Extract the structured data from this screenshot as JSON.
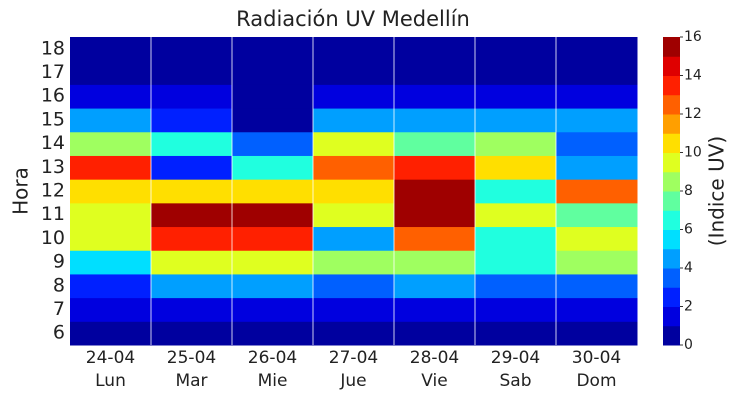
{
  "chart_data": {
    "type": "heatmap",
    "title": "Radiación UV Medellín",
    "x_categories": [
      "24-04",
      "25-04",
      "26-04",
      "27-04",
      "28-04",
      "29-04",
      "30-04"
    ],
    "x_sublabels": [
      "Lun",
      "Mar",
      "Mie",
      "Jue",
      "Vie",
      "Sab",
      "Dom"
    ],
    "y_categories": [
      "6",
      "7",
      "8",
      "9",
      "10",
      "11",
      "12",
      "13",
      "14",
      "15",
      "16",
      "17",
      "18"
    ],
    "y_label": "Hora",
    "colorbar_label": "(Indice UV)",
    "colormap": "jet",
    "zlim": [
      0,
      16
    ],
    "zticks": [
      0,
      2,
      4,
      6,
      8,
      10,
      12,
      14,
      16
    ],
    "values": [
      [
        0,
        0,
        0,
        0,
        0,
        0,
        0
      ],
      [
        1,
        1,
        1,
        1,
        1,
        1,
        1
      ],
      [
        2,
        4,
        4,
        3,
        4,
        3,
        3
      ],
      [
        5,
        9,
        9,
        8,
        8,
        6,
        8
      ],
      [
        9,
        13,
        13,
        4,
        12,
        6,
        9
      ],
      [
        9,
        15,
        15,
        9,
        15,
        9,
        7
      ],
      [
        10,
        10,
        10,
        10,
        15,
        6,
        12
      ],
      [
        13,
        2,
        6,
        12,
        13,
        10,
        4
      ],
      [
        8,
        6,
        3,
        9,
        7,
        8,
        3
      ],
      [
        4,
        2,
        0,
        4,
        4,
        4,
        4
      ],
      [
        1,
        1,
        0,
        1,
        1,
        1,
        1
      ],
      [
        0,
        0,
        0,
        0,
        0,
        0,
        0
      ],
      [
        0,
        0,
        0,
        0,
        0,
        0,
        0
      ]
    ]
  }
}
